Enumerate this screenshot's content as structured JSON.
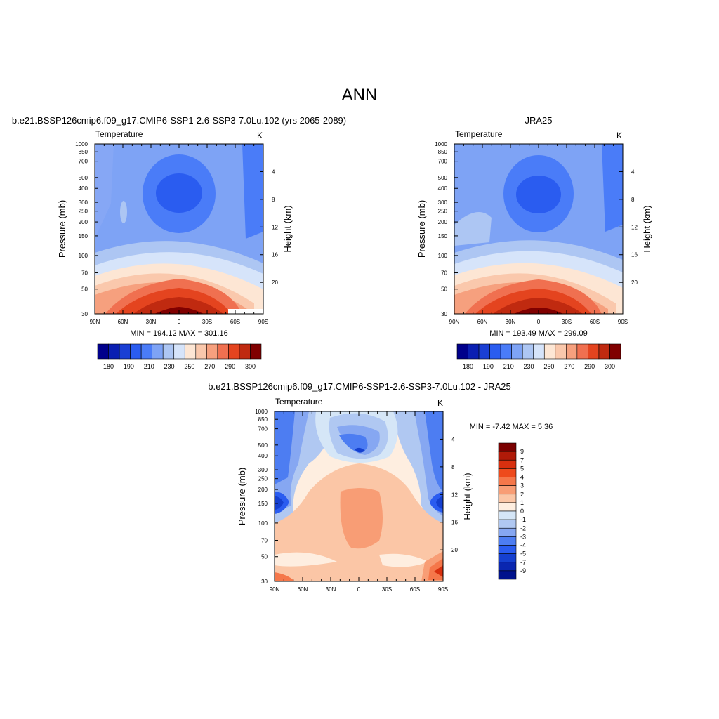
{
  "page": {
    "title": "ANN"
  },
  "chart_data": [
    {
      "type": "heatmap",
      "title": "b.e21.BSSP126cmip6.f09_g17.CMIP6-SSP1-2.6-SSP3-7.0Lu.102 (yrs 2065-2089)",
      "variable": "Temperature",
      "units": "K",
      "xlabel": "",
      "ylabel": "Pressure (mb)",
      "y2label": "Height (km)",
      "x_ticks": [
        "90N",
        "60N",
        "30N",
        "0",
        "30S",
        "60S",
        "90S"
      ],
      "y_ticks": [
        "30",
        "50",
        "70",
        "100",
        "150",
        "200",
        "250",
        "300",
        "400",
        "500",
        "700",
        "850",
        "1000"
      ],
      "y2_ticks": [
        "4",
        "8",
        "12",
        "16",
        "20"
      ],
      "stats": "MIN = 194.12  MAX = 301.16",
      "colorbar_labels": [
        "180",
        "190",
        "210",
        "230",
        "250",
        "270",
        "290",
        "300"
      ],
      "ylim": [
        1000,
        30
      ],
      "log_y": true
    },
    {
      "type": "heatmap",
      "title": "JRA25",
      "variable": "Temperature",
      "units": "K",
      "xlabel": "",
      "ylabel": "Pressure (mb)",
      "y2label": "Height (km)",
      "x_ticks": [
        "90N",
        "60N",
        "30N",
        "0",
        "30S",
        "60S",
        "90S"
      ],
      "y_ticks": [
        "30",
        "50",
        "70",
        "100",
        "150",
        "200",
        "250",
        "300",
        "400",
        "500",
        "700",
        "850",
        "1000"
      ],
      "y2_ticks": [
        "4",
        "8",
        "12",
        "16",
        "20"
      ],
      "stats": "MIN = 193.49  MAX = 299.09",
      "colorbar_labels": [
        "180",
        "190",
        "210",
        "230",
        "250",
        "270",
        "290",
        "300"
      ],
      "ylim": [
        1000,
        30
      ],
      "log_y": true
    },
    {
      "type": "heatmap",
      "title": "b.e21.BSSP126cmip6.f09_g17.CMIP6-SSP1-2.6-SSP3-7.0Lu.102 - JRA25",
      "variable": "Temperature",
      "units": "K",
      "xlabel": "",
      "ylabel": "Pressure (mb)",
      "y2label": "Height (km)",
      "x_ticks": [
        "90N",
        "60N",
        "30N",
        "0",
        "30S",
        "60S",
        "90S"
      ],
      "y_ticks": [
        "30",
        "50",
        "70",
        "100",
        "150",
        "200",
        "250",
        "300",
        "400",
        "500",
        "700",
        "850",
        "1000"
      ],
      "y2_ticks": [
        "4",
        "8",
        "12",
        "16",
        "20"
      ],
      "stats": "MIN =  -7.42  MAX =   5.36",
      "colorbar_labels": [
        "9",
        "7",
        "5",
        "4",
        "3",
        "2",
        "1",
        "0",
        "-1",
        "-2",
        "-3",
        "-4",
        "-5",
        "-7",
        "-9"
      ],
      "ylim": [
        1000,
        30
      ],
      "log_y": true
    }
  ],
  "palette": {
    "abs": [
      "#00008b",
      "#0a1fb2",
      "#1a3fd4",
      "#2a5cf0",
      "#4a7cf8",
      "#7ea3f5",
      "#adc6f3",
      "#d6e4fa",
      "#fde6d4",
      "#fac8ac",
      "#f6a07e",
      "#f07050",
      "#e4441f",
      "#c02a10",
      "#800000"
    ],
    "diff": [
      "#7a0000",
      "#b01a08",
      "#d8300f",
      "#ee4a1c",
      "#f5774a",
      "#f89d75",
      "#fbc6a6",
      "#feeee0",
      "#d5e6f7",
      "#b0c8f2",
      "#86a7f2",
      "#4d7df2",
      "#2a5cf0",
      "#1540d0",
      "#0a26b0",
      "#00128c"
    ]
  }
}
